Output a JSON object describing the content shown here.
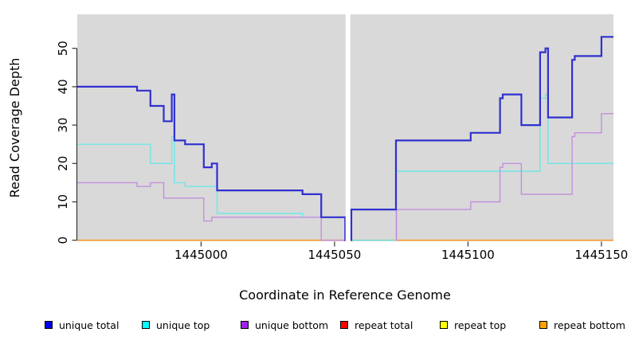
{
  "chart_data": {
    "type": "line",
    "subtype": "step-after-coverage-plot",
    "title": "",
    "xlabel": "Coordinate in Reference Genome",
    "ylabel": "Read Coverage Depth",
    "xlim": [
      1444953.6,
      1445154.5
    ],
    "ylim": [
      -0.27,
      58.87
    ],
    "grid": false,
    "panel_bg": "#d9d9d9",
    "gap_band": {
      "x_from": 1445054.1,
      "x_to": 1445055.9,
      "color": "#ffffff"
    },
    "xticks": [
      {
        "v": 1445000,
        "label": "1445000"
      },
      {
        "v": 1445050,
        "label": "1445050"
      },
      {
        "v": 1445100,
        "label": "1445100"
      },
      {
        "v": 1445150,
        "label": "1445150"
      }
    ],
    "yticks": [
      {
        "v": 0,
        "label": "0"
      },
      {
        "v": 10,
        "label": "10"
      },
      {
        "v": 20,
        "label": "20"
      },
      {
        "v": 30,
        "label": "30"
      },
      {
        "v": 40,
        "label": "40"
      },
      {
        "v": 50,
        "label": "50"
      }
    ],
    "series": [
      {
        "name": "repeat total",
        "color": "#e03030",
        "width": 1.2,
        "segments": [
          [
            [
              1444953.6,
              0
            ],
            [
              1445154.5,
              0
            ]
          ]
        ]
      },
      {
        "name": "repeat top",
        "color": "#f5f53c",
        "width": 1.2,
        "segments": [
          [
            [
              1444953.6,
              0
            ],
            [
              1445154.5,
              0
            ]
          ]
        ]
      },
      {
        "name": "repeat bottom",
        "color": "#ff9d2e",
        "width": 1.7,
        "segments": [
          [
            [
              1444953.6,
              0
            ],
            [
              1445154.5,
              0
            ]
          ]
        ]
      },
      {
        "name": "unique top",
        "color": "#6fe7e7",
        "width": 1.4,
        "segments": [
          [
            [
              1444953.6,
              25
            ],
            [
              1444981,
              20
            ],
            [
              1444989,
              27
            ],
            [
              1444990,
              15
            ],
            [
              1444994,
              14
            ],
            [
              1445006,
              7
            ],
            [
              1445038,
              6
            ],
            [
              1445054,
              0
            ],
            [
              1445054.2,
              0
            ]
          ],
          [
            [
              1445056.1,
              0
            ],
            [
              1445073,
              18
            ],
            [
              1445127,
              37
            ],
            [
              1445129,
              38
            ],
            [
              1445130,
              20
            ],
            [
              1445154.5,
              20
            ]
          ]
        ]
      },
      {
        "name": "unique bottom",
        "color": "#c38fde",
        "width": 1.4,
        "segments": [
          [
            [
              1444953.6,
              15
            ],
            [
              1444976,
              14
            ],
            [
              1444981,
              15
            ],
            [
              1444986,
              11
            ],
            [
              1445001,
              5
            ],
            [
              1445004,
              6
            ],
            [
              1445045,
              0
            ],
            [
              1445054.1,
              0
            ]
          ],
          [
            [
              1445073,
              0
            ],
            [
              1445073.2,
              8
            ],
            [
              1445101,
              10
            ],
            [
              1445112,
              19
            ],
            [
              1445113,
              20
            ],
            [
              1445120,
              12
            ],
            [
              1445139,
              27
            ],
            [
              1445140,
              28
            ],
            [
              1445150,
              33
            ],
            [
              1445154.5,
              33
            ]
          ]
        ]
      },
      {
        "name": "unique total",
        "color": "#3030cf",
        "width": 2.2,
        "segments": [
          [
            [
              1444953.6,
              40
            ],
            [
              1444976,
              39
            ],
            [
              1444981,
              35
            ],
            [
              1444986,
              31
            ],
            [
              1444989,
              38
            ],
            [
              1444990,
              26
            ],
            [
              1444994,
              25
            ],
            [
              1445001,
              19
            ],
            [
              1445004,
              20
            ],
            [
              1445006,
              13
            ],
            [
              1445038,
              12
            ],
            [
              1445045,
              6
            ],
            [
              1445054,
              0
            ],
            [
              1445054.2,
              0
            ]
          ],
          [
            [
              1445056.1,
              0
            ],
            [
              1445056.3,
              8
            ],
            [
              1445073,
              26
            ],
            [
              1445101,
              28
            ],
            [
              1445112,
              37
            ],
            [
              1445113,
              38
            ],
            [
              1445120,
              30
            ],
            [
              1445127,
              49
            ],
            [
              1445129,
              50
            ],
            [
              1445130,
              32
            ],
            [
              1445139,
              47
            ],
            [
              1445140,
              48
            ],
            [
              1445150,
              53
            ],
            [
              1445154.5,
              53
            ]
          ]
        ]
      }
    ],
    "legend": [
      {
        "label": "unique total",
        "color": "#0000ee"
      },
      {
        "label": "unique top",
        "color": "#00ffff"
      },
      {
        "label": "unique bottom",
        "color": "#a020f0"
      },
      {
        "label": "repeat total",
        "color": "#ff0000"
      },
      {
        "label": "repeat top",
        "color": "#ffff00"
      },
      {
        "label": "repeat bottom",
        "color": "#ffa500"
      }
    ]
  }
}
